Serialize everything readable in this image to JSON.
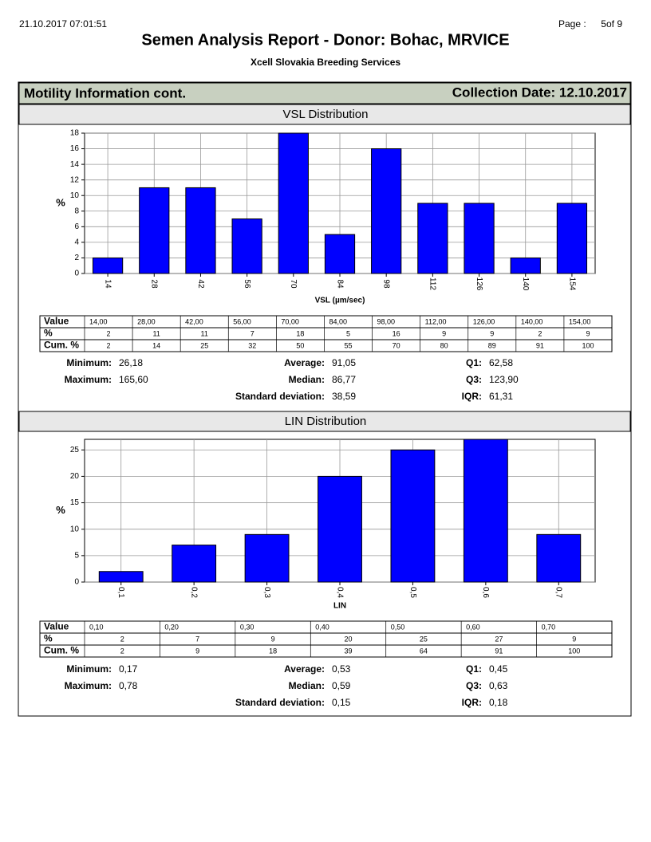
{
  "header": {
    "timestamp": "21.10.2017 07:01:51",
    "page_label": "Page :",
    "page": "5of 9",
    "title": "Semen Analysis Report - Donor: Bohac, MRVICE",
    "subtitle": "Xcell Slovakia Breeding Services"
  },
  "section": {
    "title": "Motility Information cont.",
    "date": "Collection Date: 12.10.2017"
  },
  "charts": [
    {
      "type": "bar",
      "title": "VSL Distribution",
      "x_label": "VSL (µm/sec)",
      "y_label": "%",
      "color": "#0000ff",
      "grid": true,
      "categories": [
        "14",
        "28",
        "42",
        "56",
        "70",
        "84",
        "98",
        "112",
        "126",
        "140",
        "154"
      ],
      "values": [
        2,
        11,
        11,
        7,
        18,
        5,
        16,
        9,
        9,
        2,
        9
      ],
      "ylim": [
        0,
        18
      ],
      "yticks": [
        0,
        2,
        4,
        6,
        8,
        10,
        12,
        14,
        16,
        18
      ],
      "table": {
        "row_labels": [
          "Value",
          "%",
          "Cum. %"
        ],
        "value_row": [
          "14,00",
          "28,00",
          "42,00",
          "56,00",
          "70,00",
          "84,00",
          "98,00",
          "112,00",
          "126,00",
          "140,00",
          "154,00"
        ],
        "cum_row": [
          2,
          14,
          25,
          32,
          50,
          55,
          70,
          80,
          89,
          91,
          100
        ]
      },
      "stats": [
        {
          "label": "Minimum:",
          "value": "26,18"
        },
        {
          "label": "Maximum:",
          "value": "165,60"
        },
        {
          "label": "Average:",
          "value": "91,05"
        },
        {
          "label": "Median:",
          "value": "86,77"
        },
        {
          "label": "Standard deviation:",
          "value": "38,59"
        },
        {
          "label": "Q1:",
          "value": "62,58"
        },
        {
          "label": "Q3:",
          "value": "123,90"
        },
        {
          "label": "IQR:",
          "value": "61,31"
        }
      ]
    },
    {
      "type": "bar",
      "title": "LIN Distribution",
      "x_label": "LIN",
      "y_label": "%",
      "color": "#0000ff",
      "grid": true,
      "categories": [
        "0,1",
        "0,2",
        "0,3",
        "0,4",
        "0,5",
        "0,6",
        "0,7"
      ],
      "values": [
        2,
        7,
        9,
        20,
        25,
        27,
        9
      ],
      "ylim": [
        0,
        27
      ],
      "yticks": [
        0,
        5,
        10,
        15,
        20,
        25
      ],
      "table": {
        "row_labels": [
          "Value",
          "%",
          "Cum. %"
        ],
        "value_row": [
          "0,10",
          "0,20",
          "0,30",
          "0,40",
          "0,50",
          "0,60",
          "0,70"
        ],
        "cum_row": [
          2,
          9,
          18,
          39,
          64,
          91,
          100
        ]
      },
      "stats": [
        {
          "label": "Minimum:",
          "value": "0,17"
        },
        {
          "label": "Maximum:",
          "value": "0,78"
        },
        {
          "label": "Average:",
          "value": "0,53"
        },
        {
          "label": "Median:",
          "value": "0,59"
        },
        {
          "label": "Standard deviation:",
          "value": "0,15"
        },
        {
          "label": "Q1:",
          "value": "0,45"
        },
        {
          "label": "Q3:",
          "value": "0,63"
        },
        {
          "label": "IQR:",
          "value": "0,18"
        }
      ]
    }
  ]
}
